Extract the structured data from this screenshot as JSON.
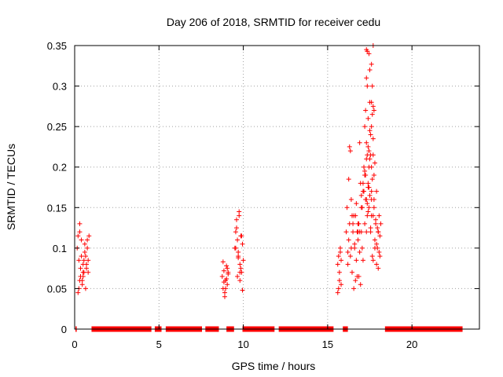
{
  "chart_data": {
    "type": "scatter",
    "title": "Day 206 of 2018, SRMTID for receiver cedu",
    "xlabel": "GPS time / hours",
    "ylabel": "SRMTID / TECUs",
    "xlim": [
      0,
      24
    ],
    "ylim": [
      0,
      0.35
    ],
    "xticks": [
      0,
      5,
      10,
      15,
      20
    ],
    "xtick_labels": [
      "0",
      "5",
      "10",
      "15",
      "20"
    ],
    "yticks": [
      0,
      0.05,
      0.1,
      0.15,
      0.2,
      0.25,
      0.3,
      0.35
    ],
    "ytick_labels": [
      "0",
      "0.05",
      "0.1",
      "0.15",
      "0.2",
      "0.25",
      "0.3",
      "0.35"
    ],
    "grid": true,
    "marker": "+",
    "series_color": "#ff0000",
    "zero_segments": [
      [
        0.05,
        0.12
      ],
      [
        1.0,
        4.55
      ],
      [
        4.75,
        5.15
      ],
      [
        5.4,
        7.55
      ],
      [
        7.75,
        8.55
      ],
      [
        9.0,
        9.45
      ],
      [
        9.95,
        11.85
      ],
      [
        12.1,
        15.35
      ],
      [
        15.9,
        16.2
      ],
      [
        18.4,
        23.0
      ]
    ],
    "series": [
      {
        "name": "SRMTID",
        "x": [
          0.15,
          0.2,
          0.25,
          0.3,
          0.35,
          0.4,
          0.45,
          0.5,
          0.55,
          0.6,
          0.65,
          0.7,
          0.75,
          0.8,
          0.85,
          0.2,
          0.3,
          0.4,
          0.5,
          0.6,
          0.7,
          0.8,
          0.25,
          0.35,
          0.45,
          0.55,
          0.65,
          0.75,
          0.3,
          0.5,
          0.7,
          8.75,
          8.8,
          8.85,
          8.9,
          8.95,
          9.0,
          9.05,
          9.1,
          8.8,
          8.9,
          9.0,
          9.1,
          8.85,
          8.95,
          9.05,
          9.5,
          9.55,
          9.6,
          9.65,
          9.7,
          9.75,
          9.8,
          9.85,
          9.9,
          9.95,
          10.0,
          9.6,
          9.7,
          9.8,
          9.9,
          9.65,
          9.75,
          9.85,
          9.95,
          9.55,
          9.7,
          9.8,
          15.6,
          15.65,
          15.7,
          15.75,
          15.8,
          15.6,
          15.7,
          15.8,
          15.65,
          15.75,
          16.1,
          16.15,
          16.2,
          16.25,
          16.3,
          16.35,
          16.4,
          16.45,
          16.5,
          16.55,
          16.6,
          16.65,
          16.7,
          16.75,
          16.8,
          16.85,
          16.9,
          16.95,
          17.0,
          17.05,
          17.1,
          17.15,
          17.2,
          17.25,
          17.3,
          17.35,
          17.4,
          17.45,
          17.5,
          17.55,
          17.6,
          17.65,
          17.7,
          17.75,
          17.8,
          17.85,
          17.9,
          17.95,
          18.0,
          18.05,
          18.1,
          18.15,
          16.2,
          16.3,
          16.4,
          16.5,
          16.6,
          16.7,
          16.8,
          16.9,
          17.0,
          17.1,
          17.2,
          17.3,
          17.4,
          17.5,
          17.6,
          17.7,
          17.8,
          17.9,
          18.0,
          18.1,
          16.25,
          16.35,
          16.45,
          16.55,
          16.65,
          16.75,
          16.85,
          16.95,
          17.05,
          17.15,
          17.25,
          17.35,
          17.45,
          17.55,
          17.65,
          17.75,
          17.85,
          17.95,
          18.05,
          17.2,
          17.25,
          17.3,
          17.35,
          17.4,
          17.45,
          17.5,
          17.55,
          17.6,
          17.65,
          17.7,
          17.75,
          17.3,
          17.4,
          17.5,
          17.6,
          17.7,
          17.2,
          17.4,
          17.6,
          17.8,
          17.9,
          18.0,
          17.1,
          17.0,
          16.9,
          16.8,
          17.3,
          17.35,
          17.45,
          17.6,
          17.65,
          17.7,
          17.75,
          17.5,
          17.55,
          17.45,
          17.3,
          17.35,
          17.7,
          17.6
        ],
        "y": [
          0.1,
          0.045,
          0.085,
          0.13,
          0.065,
          0.11,
          0.055,
          0.08,
          0.07,
          0.095,
          0.05,
          0.075,
          0.1,
          0.085,
          0.115,
          0.115,
          0.06,
          0.09,
          0.065,
          0.105,
          0.08,
          0.07,
          0.05,
          0.075,
          0.06,
          0.085,
          0.09,
          0.11,
          0.12,
          0.07,
          0.08,
          0.065,
          0.05,
          0.072,
          0.04,
          0.06,
          0.078,
          0.055,
          0.068,
          0.083,
          0.045,
          0.062,
          0.07,
          0.058,
          0.05,
          0.075,
          0.1,
          0.12,
          0.135,
          0.11,
          0.09,
          0.145,
          0.08,
          0.115,
          0.07,
          0.105,
          0.085,
          0.125,
          0.095,
          0.06,
          0.115,
          0.065,
          0.14,
          0.075,
          0.048,
          0.1,
          0.088,
          0.07,
          0.045,
          0.09,
          0.06,
          0.1,
          0.055,
          0.08,
          0.07,
          0.085,
          0.05,
          0.095,
          0.12,
          0.15,
          0.08,
          0.11,
          0.13,
          0.09,
          0.16,
          0.07,
          0.12,
          0.05,
          0.1,
          0.14,
          0.085,
          0.065,
          0.11,
          0.13,
          0.095,
          0.18,
          0.12,
          0.15,
          0.17,
          0.2,
          0.13,
          0.19,
          0.16,
          0.14,
          0.18,
          0.15,
          0.21,
          0.12,
          0.17,
          0.09,
          0.14,
          0.16,
          0.11,
          0.13,
          0.08,
          0.1,
          0.12,
          0.095,
          0.115,
          0.13,
          0.095,
          0.225,
          0.1,
          0.13,
          0.105,
          0.155,
          0.12,
          0.12,
          0.165,
          0.085,
          0.19,
          0.12,
          0.145,
          0.165,
          0.14,
          0.085,
          0.1,
          0.105,
          0.075,
          0.09,
          0.185,
          0.22,
          0.14,
          0.14,
          0.06,
          0.12,
          0.065,
          0.055,
          0.1,
          0.17,
          0.16,
          0.155,
          0.175,
          0.125,
          0.185,
          0.15,
          0.135,
          0.125,
          0.14,
          0.25,
          0.27,
          0.23,
          0.3,
          0.26,
          0.22,
          0.28,
          0.24,
          0.2,
          0.265,
          0.235,
          0.19,
          0.21,
          0.175,
          0.245,
          0.25,
          0.215,
          0.195,
          0.225,
          0.16,
          0.205,
          0.17,
          0.12,
          0.18,
          0.15,
          0.23,
          0.13,
          0.31,
          0.215,
          0.2,
          0.28,
          0.3,
          0.275,
          0.27,
          0.32,
          0.215,
          0.34,
          0.345,
          0.343,
          0.35,
          0.327
        ],
        "color": "#ff0000"
      }
    ]
  }
}
